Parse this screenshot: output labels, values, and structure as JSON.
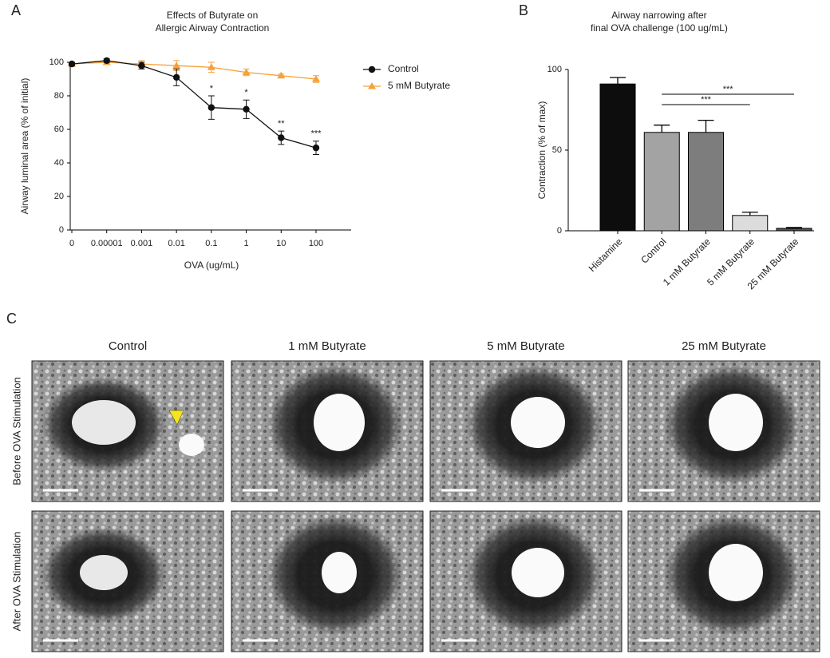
{
  "panel_labels": [
    "A",
    "B",
    "C"
  ],
  "chart_data": [
    {
      "type": "line",
      "title": [
        "Effects of Butyrate on",
        "Allergic Airway Contraction"
      ],
      "x_label": "OVA (ug/mL)",
      "y_label": "Airway luminal area (% of initial)",
      "categories": [
        "0",
        "0.00001",
        "0.001",
        "0.01",
        "0.1",
        "1",
        "10",
        "100"
      ],
      "series": [
        {
          "name": "Control",
          "color": "#111111",
          "marker": "circle",
          "values": [
            99,
            101,
            98,
            91,
            73,
            72,
            55,
            49
          ],
          "errors": [
            1,
            1,
            2,
            5,
            7,
            5.5,
            4,
            4
          ]
        },
        {
          "name": "5 mM Butyrate",
          "color": "#f7a13a",
          "marker": "triangle",
          "values": [
            99,
            100,
            99,
            98,
            97,
            94,
            92,
            90
          ],
          "errors": [
            1,
            1,
            2,
            3,
            3,
            2,
            1,
            2
          ]
        }
      ],
      "annotations": [
        {
          "x": "0.1",
          "text": "*"
        },
        {
          "x": "1",
          "text": "*"
        },
        {
          "x": "10",
          "text": "**"
        },
        {
          "x": "100",
          "text": "***"
        }
      ],
      "ylim": [
        0,
        100
      ],
      "yticks": [
        0,
        20,
        40,
        60,
        80,
        100
      ],
      "grid": false,
      "legend": "right"
    },
    {
      "type": "bar",
      "title": [
        "Airway narrowing after",
        "final OVA challenge (100 ug/mL)"
      ],
      "y_label": "Contraction (% of max)",
      "categories": [
        "Histamine",
        "Control",
        "1 mM Butyrate",
        "5 mM Butyrate",
        "25 mM Butyrate"
      ],
      "values": [
        91,
        61,
        61,
        9.5,
        1.5
      ],
      "errors": [
        4,
        4.5,
        7.5,
        2,
        0.5
      ],
      "colors": [
        "#0d0d0d",
        "#a3a3a3",
        "#7d7d7d",
        "#dcdcdc",
        "#555555"
      ],
      "comparisons": [
        {
          "from": "Control",
          "to": "5 mM Butyrate",
          "text": "***"
        },
        {
          "from": "Control",
          "to": "25 mM Butyrate",
          "text": "***"
        }
      ],
      "ylim": [
        0,
        100
      ],
      "yticks": [
        0,
        50,
        100
      ],
      "grid": false
    }
  ],
  "panel_c": {
    "columns": [
      "Control",
      "1 mM Butyrate",
      "5 mM Butyrate",
      "25 mM Butyrate"
    ],
    "rows": [
      "Before OVA Stimulation",
      "After OVA Stimulation"
    ]
  }
}
